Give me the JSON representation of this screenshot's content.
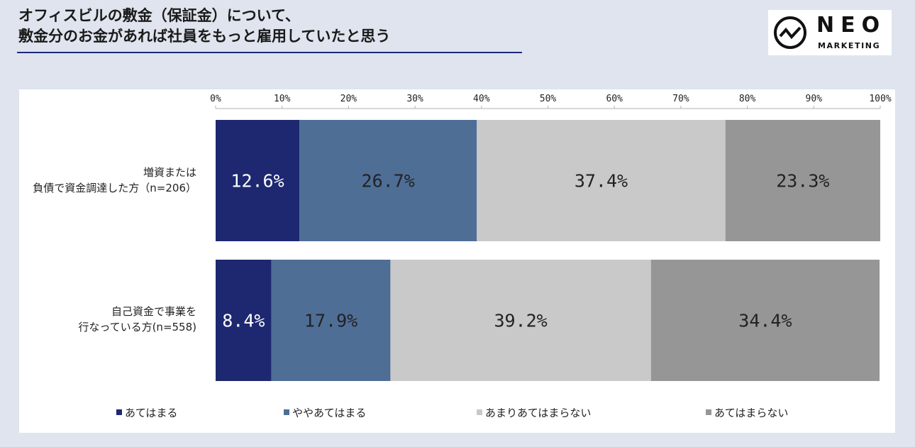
{
  "title": {
    "line1": "オフィスビルの敷金（保証金）について、",
    "line2": "敷金分のお金があれば社員をもっと雇用していたと思う"
  },
  "logo": {
    "name": "NEO",
    "sub": "MARKETING",
    "icon": "zigzag-circle-icon"
  },
  "chart_data": {
    "type": "bar",
    "orientation": "horizontal-stacked-100",
    "x_ticks": [
      "0%",
      "10%",
      "20%",
      "30%",
      "40%",
      "50%",
      "60%",
      "70%",
      "80%",
      "90%",
      "100%"
    ],
    "xlim": [
      0,
      100
    ],
    "categories": [
      {
        "line1": "増資または",
        "line2": "負債で資金調達した方（n=206）"
      },
      {
        "line1": "自己資金で事業を",
        "line2": "行なっている方(n=558)"
      }
    ],
    "series": [
      {
        "name": "あてはまる",
        "color": "#1d2870",
        "label_color": "#ffffff",
        "values": [
          12.6,
          8.4
        ],
        "labels": [
          "12.6%",
          "8.4%"
        ]
      },
      {
        "name": "ややあてはまる",
        "color": "#4e6e96",
        "label_color": "#222222",
        "values": [
          26.7,
          17.9
        ],
        "labels": [
          "26.7%",
          "17.9%"
        ]
      },
      {
        "name": "あまりあてはまらない",
        "color": "#c9c9c9",
        "label_color": "#222222",
        "values": [
          37.4,
          39.2
        ],
        "labels": [
          "37.4%",
          "39.2%"
        ]
      },
      {
        "name": "あてはまらない",
        "color": "#969696",
        "label_color": "#222222",
        "values": [
          23.3,
          34.4
        ],
        "labels": [
          "23.3%",
          "34.4%"
        ]
      }
    ],
    "legend_position": "bottom",
    "grid": false
  }
}
